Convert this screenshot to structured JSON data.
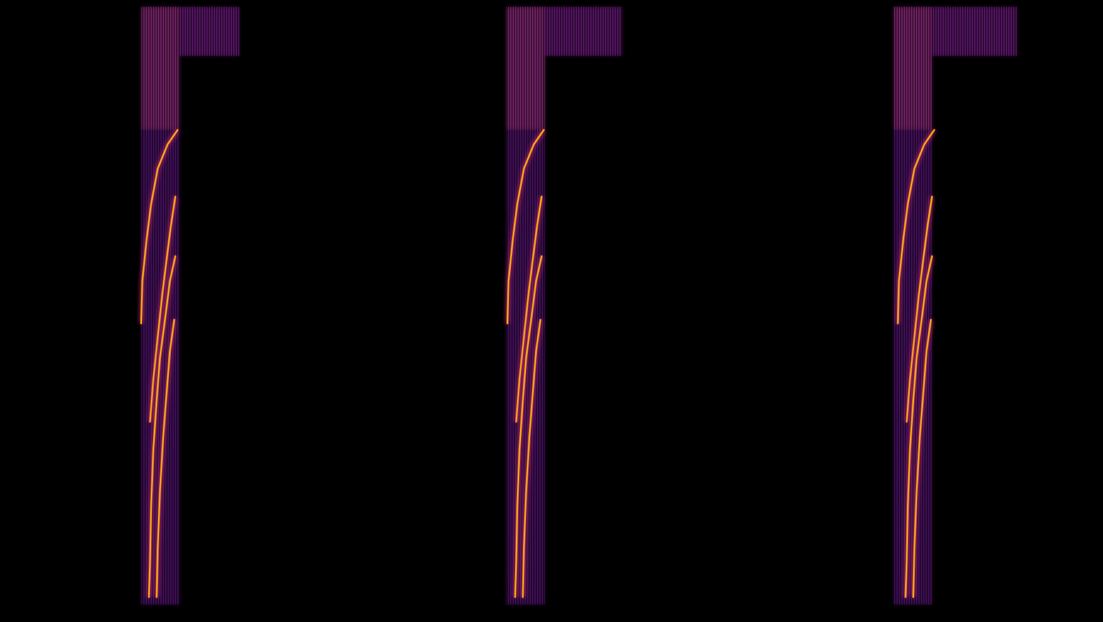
{
  "chart_data": {
    "type": "spectrogram",
    "tick_labels": false,
    "grid": false,
    "xlim": [
      0,
      100
    ],
    "ylim": [
      0,
      100
    ],
    "regions": [
      {
        "x0": 12.8,
        "x1": 16.3,
        "y0": 79.1,
        "y1": 98.9,
        "color": "#a3308f"
      },
      {
        "x0": 12.8,
        "x1": 16.3,
        "y0": 2.8,
        "y1": 79.1,
        "color": "#5c157e"
      },
      {
        "x0": 16.3,
        "x1": 21.7,
        "y0": 91.0,
        "y1": 98.9,
        "color": "#7a1f8c"
      },
      {
        "x0": 45.9,
        "x1": 49.4,
        "y0": 79.1,
        "y1": 98.9,
        "color": "#a3308f"
      },
      {
        "x0": 45.9,
        "x1": 49.4,
        "y0": 2.8,
        "y1": 79.1,
        "color": "#5c157e"
      },
      {
        "x0": 49.4,
        "x1": 56.4,
        "y0": 91.0,
        "y1": 98.9,
        "color": "#7a1f8c"
      },
      {
        "x0": 81.0,
        "x1": 84.5,
        "y0": 79.1,
        "y1": 98.9,
        "color": "#a3308f"
      },
      {
        "x0": 81.0,
        "x1": 84.5,
        "y0": 2.8,
        "y1": 79.1,
        "color": "#5c157e"
      },
      {
        "x0": 84.5,
        "x1": 92.2,
        "y0": 91.0,
        "y1": 98.9,
        "color": "#7a1f8c"
      }
    ],
    "series": [
      {
        "color": "#f7a21b",
        "x": [
          16.1,
          15.2,
          14.3,
          13.7,
          13.3,
          12.9,
          12.8
        ],
        "values": [
          79.1,
          76.8,
          72.9,
          67.2,
          61.6,
          54.8,
          48.0
        ]
      },
      {
        "color": "#f7a21b",
        "x": [
          15.9,
          15.5,
          15.1,
          14.7,
          14.3,
          13.9,
          13.6
        ],
        "values": [
          68.4,
          63.8,
          58.2,
          52.5,
          45.8,
          39.0,
          32.2
        ]
      },
      {
        "color": "#f7a21b",
        "x": [
          15.9,
          15.4,
          15.0,
          14.5,
          14.2,
          13.9,
          13.7,
          13.6,
          13.5
        ],
        "values": [
          58.8,
          54.8,
          49.2,
          42.4,
          35.6,
          27.7,
          18.6,
          9.6,
          4.0
        ]
      },
      {
        "color": "#f7a21b",
        "x": [
          15.8,
          15.4,
          15.1,
          14.8,
          14.5,
          14.3,
          14.2
        ],
        "values": [
          48.6,
          43.5,
          36.7,
          29.9,
          20.9,
          11.9,
          4.0
        ]
      },
      {
        "color": "#f7a21b",
        "x": [
          49.3,
          48.4,
          47.5,
          46.9,
          46.5,
          46.1,
          46.0
        ],
        "values": [
          79.1,
          76.8,
          72.9,
          67.2,
          61.6,
          54.8,
          48.0
        ]
      },
      {
        "color": "#f7a21b",
        "x": [
          49.1,
          48.7,
          48.3,
          47.9,
          47.5,
          47.1,
          46.8
        ],
        "values": [
          68.4,
          63.8,
          58.2,
          52.5,
          45.8,
          39.0,
          32.2
        ]
      },
      {
        "color": "#f7a21b",
        "x": [
          49.1,
          48.6,
          48.2,
          47.7,
          47.4,
          47.1,
          46.9,
          46.8,
          46.7
        ],
        "values": [
          58.8,
          54.8,
          49.2,
          42.4,
          35.6,
          27.7,
          18.6,
          9.6,
          4.0
        ]
      },
      {
        "color": "#f7a21b",
        "x": [
          49.0,
          48.6,
          48.3,
          48.0,
          47.7,
          47.5,
          47.4
        ],
        "values": [
          48.6,
          43.5,
          36.7,
          29.9,
          20.9,
          11.9,
          4.0
        ]
      },
      {
        "color": "#f7a21b",
        "x": [
          84.7,
          83.8,
          82.9,
          82.3,
          81.9,
          81.5,
          81.4
        ],
        "values": [
          79.1,
          76.8,
          72.9,
          67.2,
          61.6,
          54.8,
          48.0
        ]
      },
      {
        "color": "#f7a21b",
        "x": [
          84.5,
          84.1,
          83.7,
          83.3,
          82.9,
          82.5,
          82.2
        ],
        "values": [
          68.4,
          63.8,
          58.2,
          52.5,
          45.8,
          39.0,
          32.2
        ]
      },
      {
        "color": "#f7a21b",
        "x": [
          84.5,
          84.0,
          83.6,
          83.1,
          82.8,
          82.5,
          82.3,
          82.2,
          82.1
        ],
        "values": [
          58.8,
          54.8,
          49.2,
          42.4,
          35.6,
          27.7,
          18.6,
          9.6,
          4.0
        ]
      },
      {
        "color": "#f7a21b",
        "x": [
          84.4,
          84.0,
          83.7,
          83.4,
          83.1,
          82.9,
          82.8
        ],
        "values": [
          48.6,
          43.5,
          36.7,
          29.9,
          20.9,
          11.9,
          4.0
        ]
      }
    ]
  }
}
